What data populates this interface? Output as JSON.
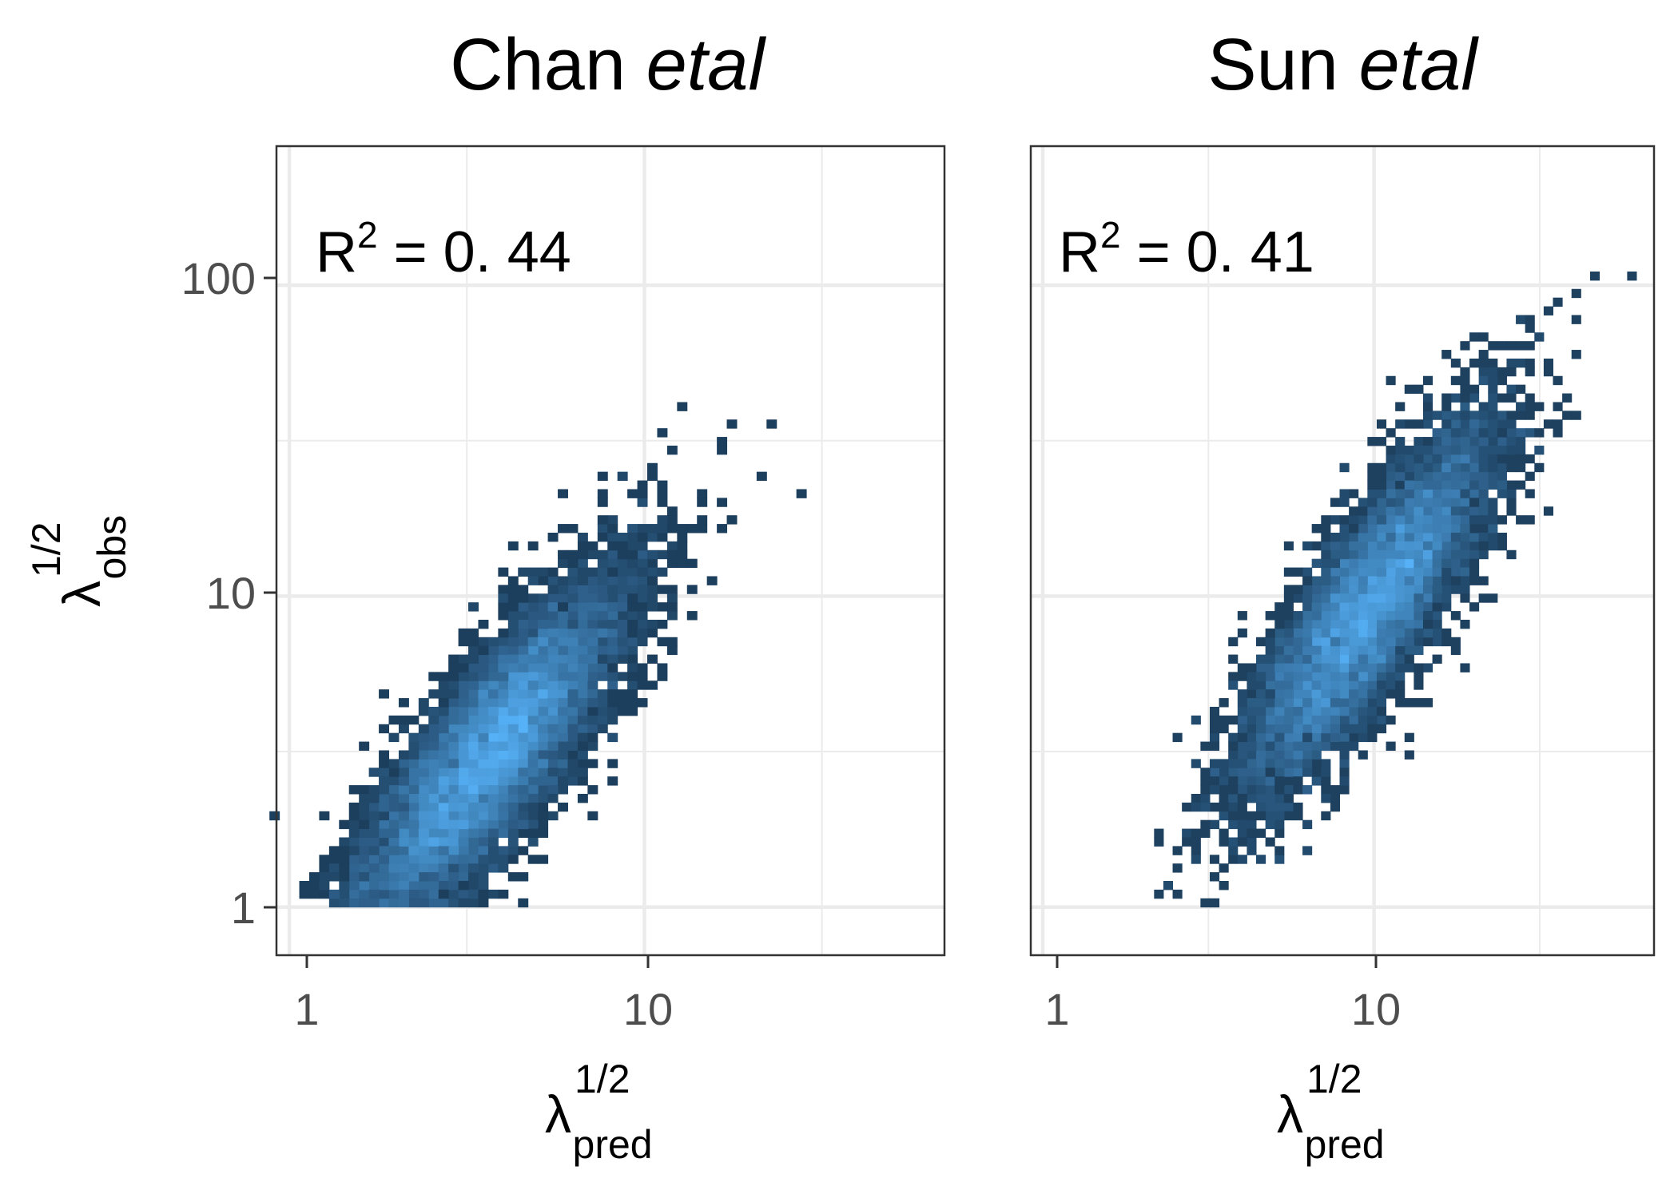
{
  "chart_data": [
    {
      "type": "heatmap",
      "title": {
        "main": "Chan",
        "emphasis": "etal"
      },
      "xlabel": {
        "symbol": "λ",
        "sup": "1/2",
        "sub": "pred"
      },
      "ylabel": {
        "symbol": "λ",
        "sup": "1/2",
        "sub": "obs"
      },
      "x_scale": "log10",
      "y_scale": "log10",
      "xlim": [
        0.92,
        70
      ],
      "ylim": [
        0.7,
        280
      ],
      "xticks": [
        1,
        10
      ],
      "xtick_labels": [
        "1",
        "10"
      ],
      "yticks": [
        1,
        10,
        100
      ],
      "ytick_labels": [
        "1",
        "10",
        "100"
      ],
      "annotation": {
        "lhs": "R",
        "sup": "2",
        "rhs": " = 0. 44"
      },
      "grid": true,
      "density_center": [
        3.6,
        3.0
      ],
      "density_slope": 1.25,
      "colorscale": [
        "#132B43",
        "#56B1F7"
      ]
    },
    {
      "type": "heatmap",
      "title": {
        "main": "Sun",
        "emphasis": "etal"
      },
      "xlabel": {
        "symbol": "λ",
        "sup": "1/2",
        "sub": "pred"
      },
      "ylabel": null,
      "x_scale": "log10",
      "y_scale": "log10",
      "xlim": [
        0.92,
        70
      ],
      "ylim": [
        0.7,
        280
      ],
      "xticks": [
        1,
        10
      ],
      "xtick_labels": [
        "1",
        "10"
      ],
      "yticks": [
        1,
        10,
        100
      ],
      "ytick_labels": [],
      "annotation": {
        "lhs": "R",
        "sup": "2",
        "rhs": " = 0. 41"
      },
      "grid": true,
      "density_center": [
        9.5,
        9.0
      ],
      "density_slope": 1.3,
      "colorscale": [
        "#132B43",
        "#56B1F7"
      ]
    }
  ]
}
